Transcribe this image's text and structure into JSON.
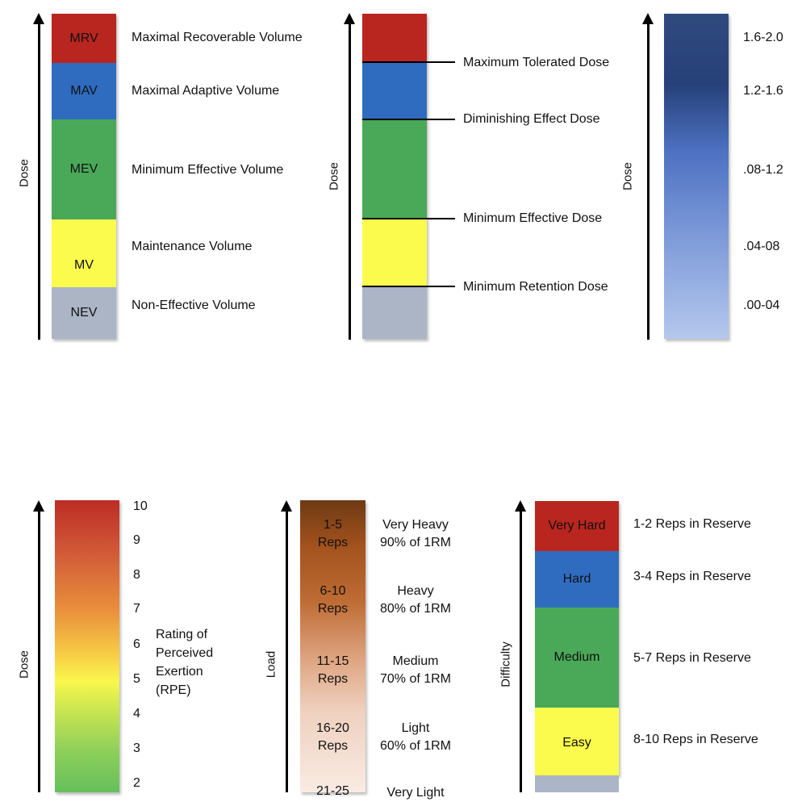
{
  "panel1": {
    "axis_label": "Dose",
    "bands": [
      {
        "abbr": "MRV",
        "label": "Maximal Recoverable Volume",
        "color": "#b8261f"
      },
      {
        "abbr": "MAV",
        "label": "Maximal  Adaptive Volume",
        "color": "#2f6cc0"
      },
      {
        "abbr": "MEV",
        "label": "Minimum Effective Volume",
        "color": "#4aa958"
      },
      {
        "abbr": "MV",
        "label": "Maintenance Volume",
        "color": "#fbfb4d"
      },
      {
        "abbr": "NEV",
        "label": "Non-Effective Volume",
        "color": "#abb5c6"
      }
    ]
  },
  "panel2": {
    "axis_label": "Dose",
    "thresholds": [
      "Maximum Tolerated Dose",
      "Diminishing Effect Dose",
      "Minimum Effective Dose",
      "Minimum Retention Dose"
    ]
  },
  "panel3": {
    "axis_label": "Dose",
    "ranges": [
      "1.6-2.0",
      "1.2-1.6",
      ".08-1.2",
      ".04-08",
      ".00-04"
    ]
  },
  "panel4": {
    "axis_label": "Dose",
    "scale": [
      "10",
      "9",
      "8",
      "7",
      "6",
      "5",
      "4",
      "3",
      "2"
    ],
    "caption": [
      "Rating of",
      "Perceived",
      "Exertion",
      "(RPE)"
    ]
  },
  "panel5": {
    "axis_label": "Load",
    "rows": [
      {
        "reps": [
          "1-5",
          "Reps"
        ],
        "desc": [
          "Very Heavy",
          "90% of 1RM"
        ]
      },
      {
        "reps": [
          "6-10",
          "Reps"
        ],
        "desc": [
          "Heavy",
          "80% of 1RM"
        ]
      },
      {
        "reps": [
          "11-15",
          "Reps"
        ],
        "desc": [
          "Medium",
          "70% of 1RM"
        ]
      },
      {
        "reps": [
          "16-20",
          "Reps"
        ],
        "desc": [
          "Light",
          "60% of 1RM"
        ]
      },
      {
        "reps": [
          "21-25",
          ""
        ],
        "desc": [
          "Very Light",
          ""
        ]
      }
    ]
  },
  "panel6": {
    "axis_label": "Difficulty",
    "bands": [
      {
        "label": "Very Hard",
        "rir": "1-2 Reps in Reserve",
        "color": "#b8261f"
      },
      {
        "label": "Hard",
        "rir": "3-4 Reps in Reserve",
        "color": "#2f6cc0"
      },
      {
        "label": "Medium",
        "rir": "5-7 Reps in Reserve",
        "color": "#4aa958"
      },
      {
        "label": "Easy",
        "rir": "8-10 Reps in Reserve",
        "color": "#fbfb4d"
      }
    ]
  }
}
